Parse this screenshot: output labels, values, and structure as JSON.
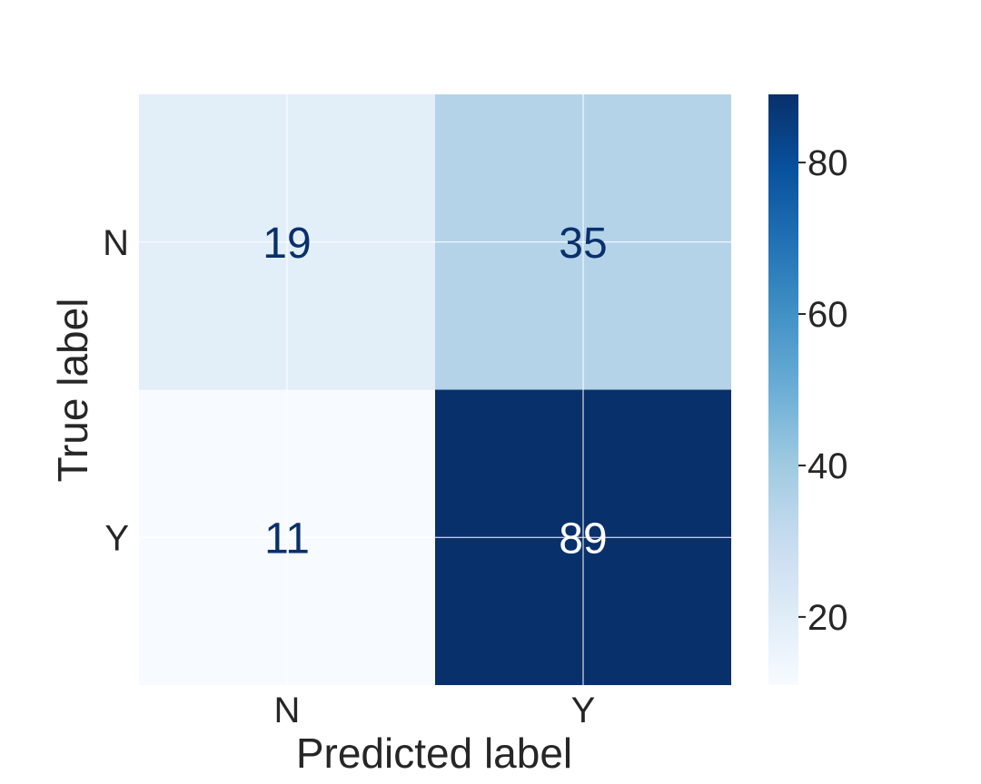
{
  "chart_data": {
    "type": "heatmap",
    "title": "",
    "xlabel": "Predicted label",
    "ylabel": "True label",
    "x_categories": [
      "N",
      "Y"
    ],
    "y_categories": [
      "N",
      "Y"
    ],
    "values": [
      [
        19,
        35
      ],
      [
        11,
        89
      ]
    ],
    "colormap": "Blues",
    "colorbar": {
      "min": 11,
      "max": 89,
      "ticks": [
        20,
        40,
        60,
        80
      ]
    },
    "grid": true
  }
}
